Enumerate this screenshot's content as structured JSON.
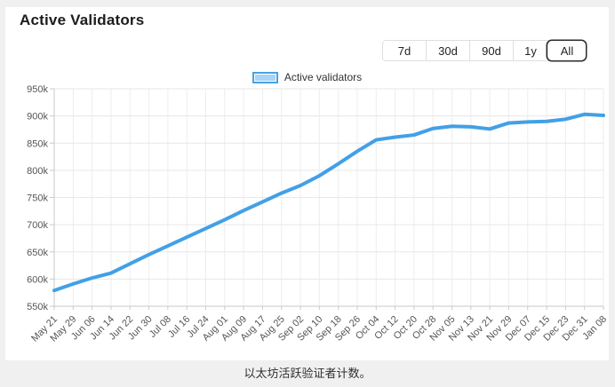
{
  "page": {
    "title": "Active Validators",
    "caption": "以太坊活跃验证者计数。"
  },
  "toolbar": {
    "ranges": [
      {
        "label": "7d",
        "selected": false
      },
      {
        "label": "30d",
        "selected": false
      },
      {
        "label": "90d",
        "selected": false
      },
      {
        "label": "1y",
        "selected": false
      },
      {
        "label": "All",
        "selected": true
      }
    ]
  },
  "legend": {
    "label": "Active validators",
    "swatch_fill": "#a9d4f3",
    "swatch_border": "#47a2e2"
  },
  "chart_data": {
    "type": "line",
    "title": "Active Validators",
    "categories": [
      "May 21",
      "May 29",
      "Jun 06",
      "Jun 14",
      "Jun 22",
      "Jun 30",
      "Jul 08",
      "Jul 16",
      "Jul 24",
      "Aug 01",
      "Aug 09",
      "Aug 17",
      "Aug 25",
      "Sep 02",
      "Sep 10",
      "Sep 18",
      "Sep 26",
      "Oct 04",
      "Oct 12",
      "Oct 20",
      "Oct 28",
      "Nov 05",
      "Nov 13",
      "Nov 21",
      "Nov 29",
      "Dec 07",
      "Dec 15",
      "Dec 23",
      "Dec 31",
      "Jan 08"
    ],
    "series": [
      {
        "name": "Active validators",
        "color": "#42a0e6",
        "values": [
          579,
          591,
          602,
          611,
          628,
          645,
          661,
          677,
          693,
          709,
          726,
          742,
          758,
          772,
          790,
          812,
          835,
          856,
          861,
          865,
          877,
          881,
          880,
          876,
          887,
          889,
          890,
          894,
          903,
          901
        ]
      }
    ],
    "value_unit": "thousands",
    "xlabel": "",
    "ylabel": "",
    "ylim": [
      550,
      950
    ],
    "ytick_step": 50,
    "ytick_labels": [
      "550k",
      "600k",
      "650k",
      "700k",
      "750k",
      "800k",
      "850k",
      "900k",
      "950k"
    ],
    "grid": true,
    "legend_position": "top",
    "x_label_rotation": -45
  },
  "chart_colors": {
    "grid_vertical": "#ededed",
    "grid_horizontal": "#e7e7e7",
    "axis": "#c9c9c9",
    "tick_text": "#555555"
  }
}
